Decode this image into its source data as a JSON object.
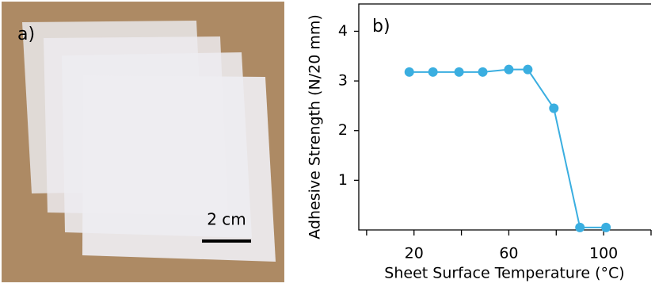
{
  "photo": {
    "label": "a)",
    "scale_bar": "2 cm"
  },
  "chart_data": {
    "type": "line",
    "panel_label": "b)",
    "x_label": "Sheet Surface Temperature (°C)",
    "y_label": "Adhesive Strength (N/20 mm)",
    "x": [
      18,
      28,
      39,
      49,
      60,
      68,
      79,
      90,
      101
    ],
    "series": [
      {
        "name": "Adhesive strength",
        "color": "#3aaee0",
        "values": [
          3.18,
          3.18,
          3.18,
          3.18,
          3.23,
          3.23,
          2.45,
          0.05,
          0.05
        ]
      }
    ],
    "xlim": [
      -3.3,
      120
    ],
    "xticks": [
      20,
      60,
      100
    ],
    "xminor_ticks": [
      0,
      40,
      80,
      120
    ],
    "ylim": [
      0,
      4.55
    ],
    "yticks": [
      1,
      2,
      3,
      4
    ]
  }
}
